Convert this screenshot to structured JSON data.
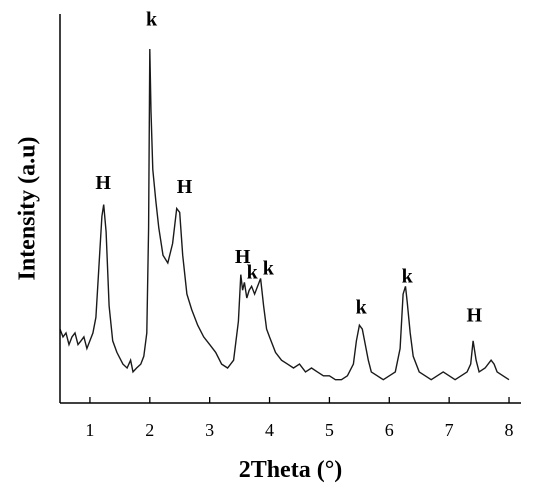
{
  "chart_data": {
    "type": "line",
    "title": "",
    "xlabel": "2Theta (°)",
    "ylabel": "Intensity (a.u)",
    "xlim": [
      0.5,
      8.2
    ],
    "ylim": [
      0,
      100
    ],
    "x_ticks": [
      "1",
      "2",
      "3",
      "4",
      "5",
      "6",
      "7",
      "8"
    ],
    "y_ticks_labeled": false,
    "grid": false,
    "legend": "none",
    "colors": {
      "line": "#1a1a1a",
      "axis": "#000000",
      "text": "#000000"
    },
    "series": [
      {
        "x": [
          0.5,
          0.55,
          0.6,
          0.65,
          0.7,
          0.75,
          0.8,
          0.85,
          0.9,
          0.95,
          1.0,
          1.05,
          1.1,
          1.15,
          1.2,
          1.23,
          1.27,
          1.32,
          1.38,
          1.45,
          1.55,
          1.62,
          1.68,
          1.72,
          1.78,
          1.85,
          1.9,
          1.95,
          1.98,
          2.0,
          2.02,
          2.05,
          2.1,
          2.15,
          2.22,
          2.3,
          2.38,
          2.45,
          2.5,
          2.55,
          2.62,
          2.7,
          2.8,
          2.9,
          3.0,
          3.1,
          3.2,
          3.3,
          3.4,
          3.48,
          3.52,
          3.55,
          3.58,
          3.62,
          3.66,
          3.7,
          3.75,
          3.8,
          3.85,
          3.9,
          3.95,
          4.0,
          4.1,
          4.2,
          4.3,
          4.4,
          4.5,
          4.6,
          4.7,
          4.8,
          4.9,
          5.0,
          5.1,
          5.2,
          5.3,
          5.4,
          5.45,
          5.5,
          5.55,
          5.6,
          5.65,
          5.7,
          5.8,
          5.9,
          6.0,
          6.1,
          6.18,
          6.23,
          6.27,
          6.3,
          6.35,
          6.4,
          6.5,
          6.6,
          6.7,
          6.8,
          6.9,
          7.0,
          7.1,
          7.2,
          7.3,
          7.36,
          7.4,
          7.45,
          7.5,
          7.6,
          7.7,
          7.75,
          7.8,
          7.9,
          8.0
        ],
        "y": [
          19,
          17,
          18,
          15,
          17,
          18,
          15,
          16,
          17,
          14,
          16,
          18,
          22,
          35,
          48,
          51,
          44,
          25,
          16,
          13,
          10,
          9,
          11,
          8,
          9,
          10,
          12,
          18,
          45,
          91,
          75,
          60,
          52,
          45,
          38,
          36,
          41,
          50,
          49,
          38,
          28,
          24,
          20,
          17,
          15,
          13,
          10,
          9,
          11,
          21,
          33,
          29,
          31,
          27,
          29,
          30,
          28,
          30,
          32,
          25,
          19,
          17,
          13,
          11,
          10,
          9,
          10,
          8,
          9,
          8,
          7,
          7,
          6,
          6,
          7,
          10,
          16,
          20,
          19,
          15,
          11,
          8,
          7,
          6,
          7,
          8,
          14,
          28,
          30,
          26,
          18,
          12,
          8,
          7,
          6,
          7,
          8,
          7,
          6,
          7,
          8,
          10,
          16,
          11,
          8,
          9,
          11,
          10,
          8,
          7,
          6
        ]
      }
    ],
    "annotations": [
      {
        "text": "H",
        "x": 1.22,
        "y": 55
      },
      {
        "text": "k",
        "x": 2.03,
        "y": 97
      },
      {
        "text": "H",
        "x": 2.58,
        "y": 54
      },
      {
        "text": "H",
        "x": 3.55,
        "y": 36
      },
      {
        "text": "k",
        "x": 3.71,
        "y": 32
      },
      {
        "text": "k",
        "x": 3.98,
        "y": 33
      },
      {
        "text": "k",
        "x": 5.53,
        "y": 23
      },
      {
        "text": "k",
        "x": 6.3,
        "y": 31
      },
      {
        "text": "H",
        "x": 7.42,
        "y": 21
      }
    ]
  }
}
